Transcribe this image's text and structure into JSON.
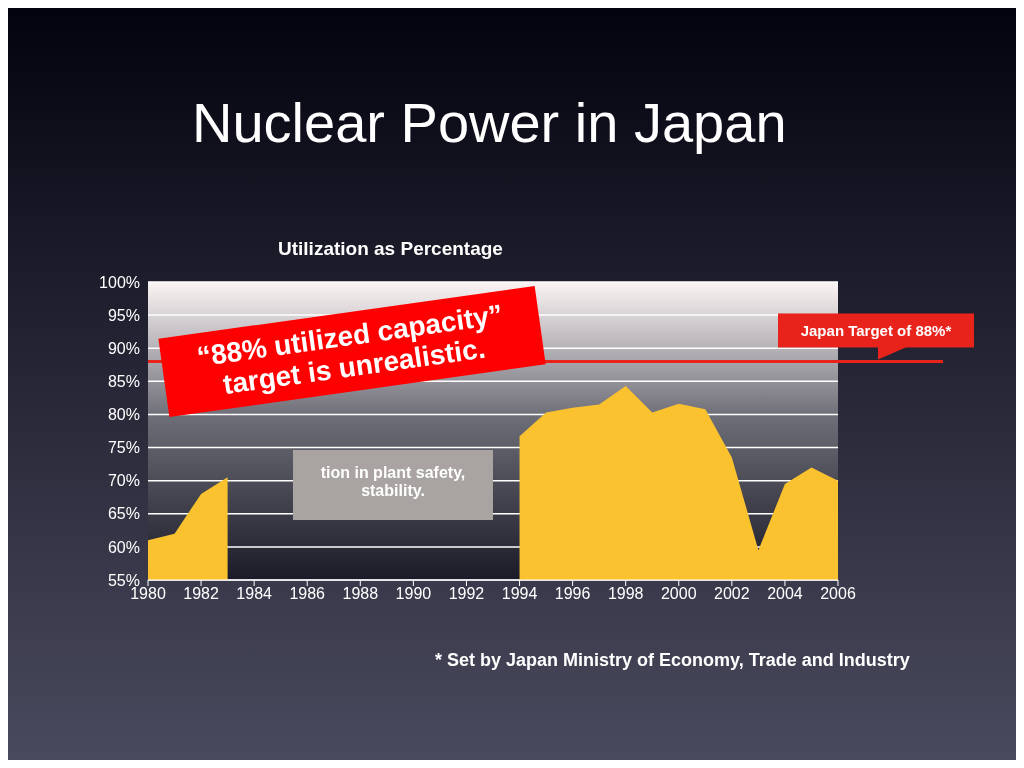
{
  "chart_data": {
    "type": "area",
    "title": "Nuclear Power in Japan",
    "subtitle": "Utilization as Percentage",
    "x": [
      1980,
      1981,
      1982,
      1983,
      1984,
      1985,
      1986,
      1987,
      1988,
      1989,
      1990,
      1991,
      1992,
      1993,
      1994,
      1995,
      1996,
      1997,
      1998,
      1999,
      2000,
      2001,
      2002,
      2003,
      2004,
      2005,
      2006
    ],
    "values": [
      61,
      62,
      68,
      70.5,
      null,
      null,
      null,
      null,
      null,
      null,
      null,
      null,
      null,
      null,
      76.7,
      80.3,
      81,
      81.5,
      84.3,
      80.3,
      81.6,
      80.8,
      73.5,
      59.5,
      69.5,
      72,
      70
    ],
    "color": "#f9c22e",
    "xlim": [
      1980,
      2006
    ],
    "xticks": [
      1980,
      1982,
      1984,
      1986,
      1988,
      1990,
      1992,
      1994,
      1996,
      1998,
      2000,
      2002,
      2004,
      2006
    ],
    "ylim": [
      55,
      100
    ],
    "yticks": [
      {
        "value": 55,
        "label": "55%"
      },
      {
        "value": 60,
        "label": "60%"
      },
      {
        "value": 65,
        "label": "65%"
      },
      {
        "value": 70,
        "label": "70%"
      },
      {
        "value": 75,
        "label": "75%"
      },
      {
        "value": 80,
        "label": "80%"
      },
      {
        "value": 85,
        "label": "85%"
      },
      {
        "value": 90,
        "label": "90%"
      },
      {
        "value": 95,
        "label": "95%"
      },
      {
        "value": 100,
        "label": "100%"
      }
    ],
    "grid": "y",
    "ref_lines": [
      {
        "axis": "y",
        "value": 88,
        "label": "Japan Target of 88%*",
        "color": "#e8231b"
      }
    ],
    "annotations": [
      "“88% utilized capacity” target is unrealistic.",
      "tion in plant safety, stability.",
      "* Set by Japan Ministry of Economy, Trade and Industry"
    ]
  }
}
